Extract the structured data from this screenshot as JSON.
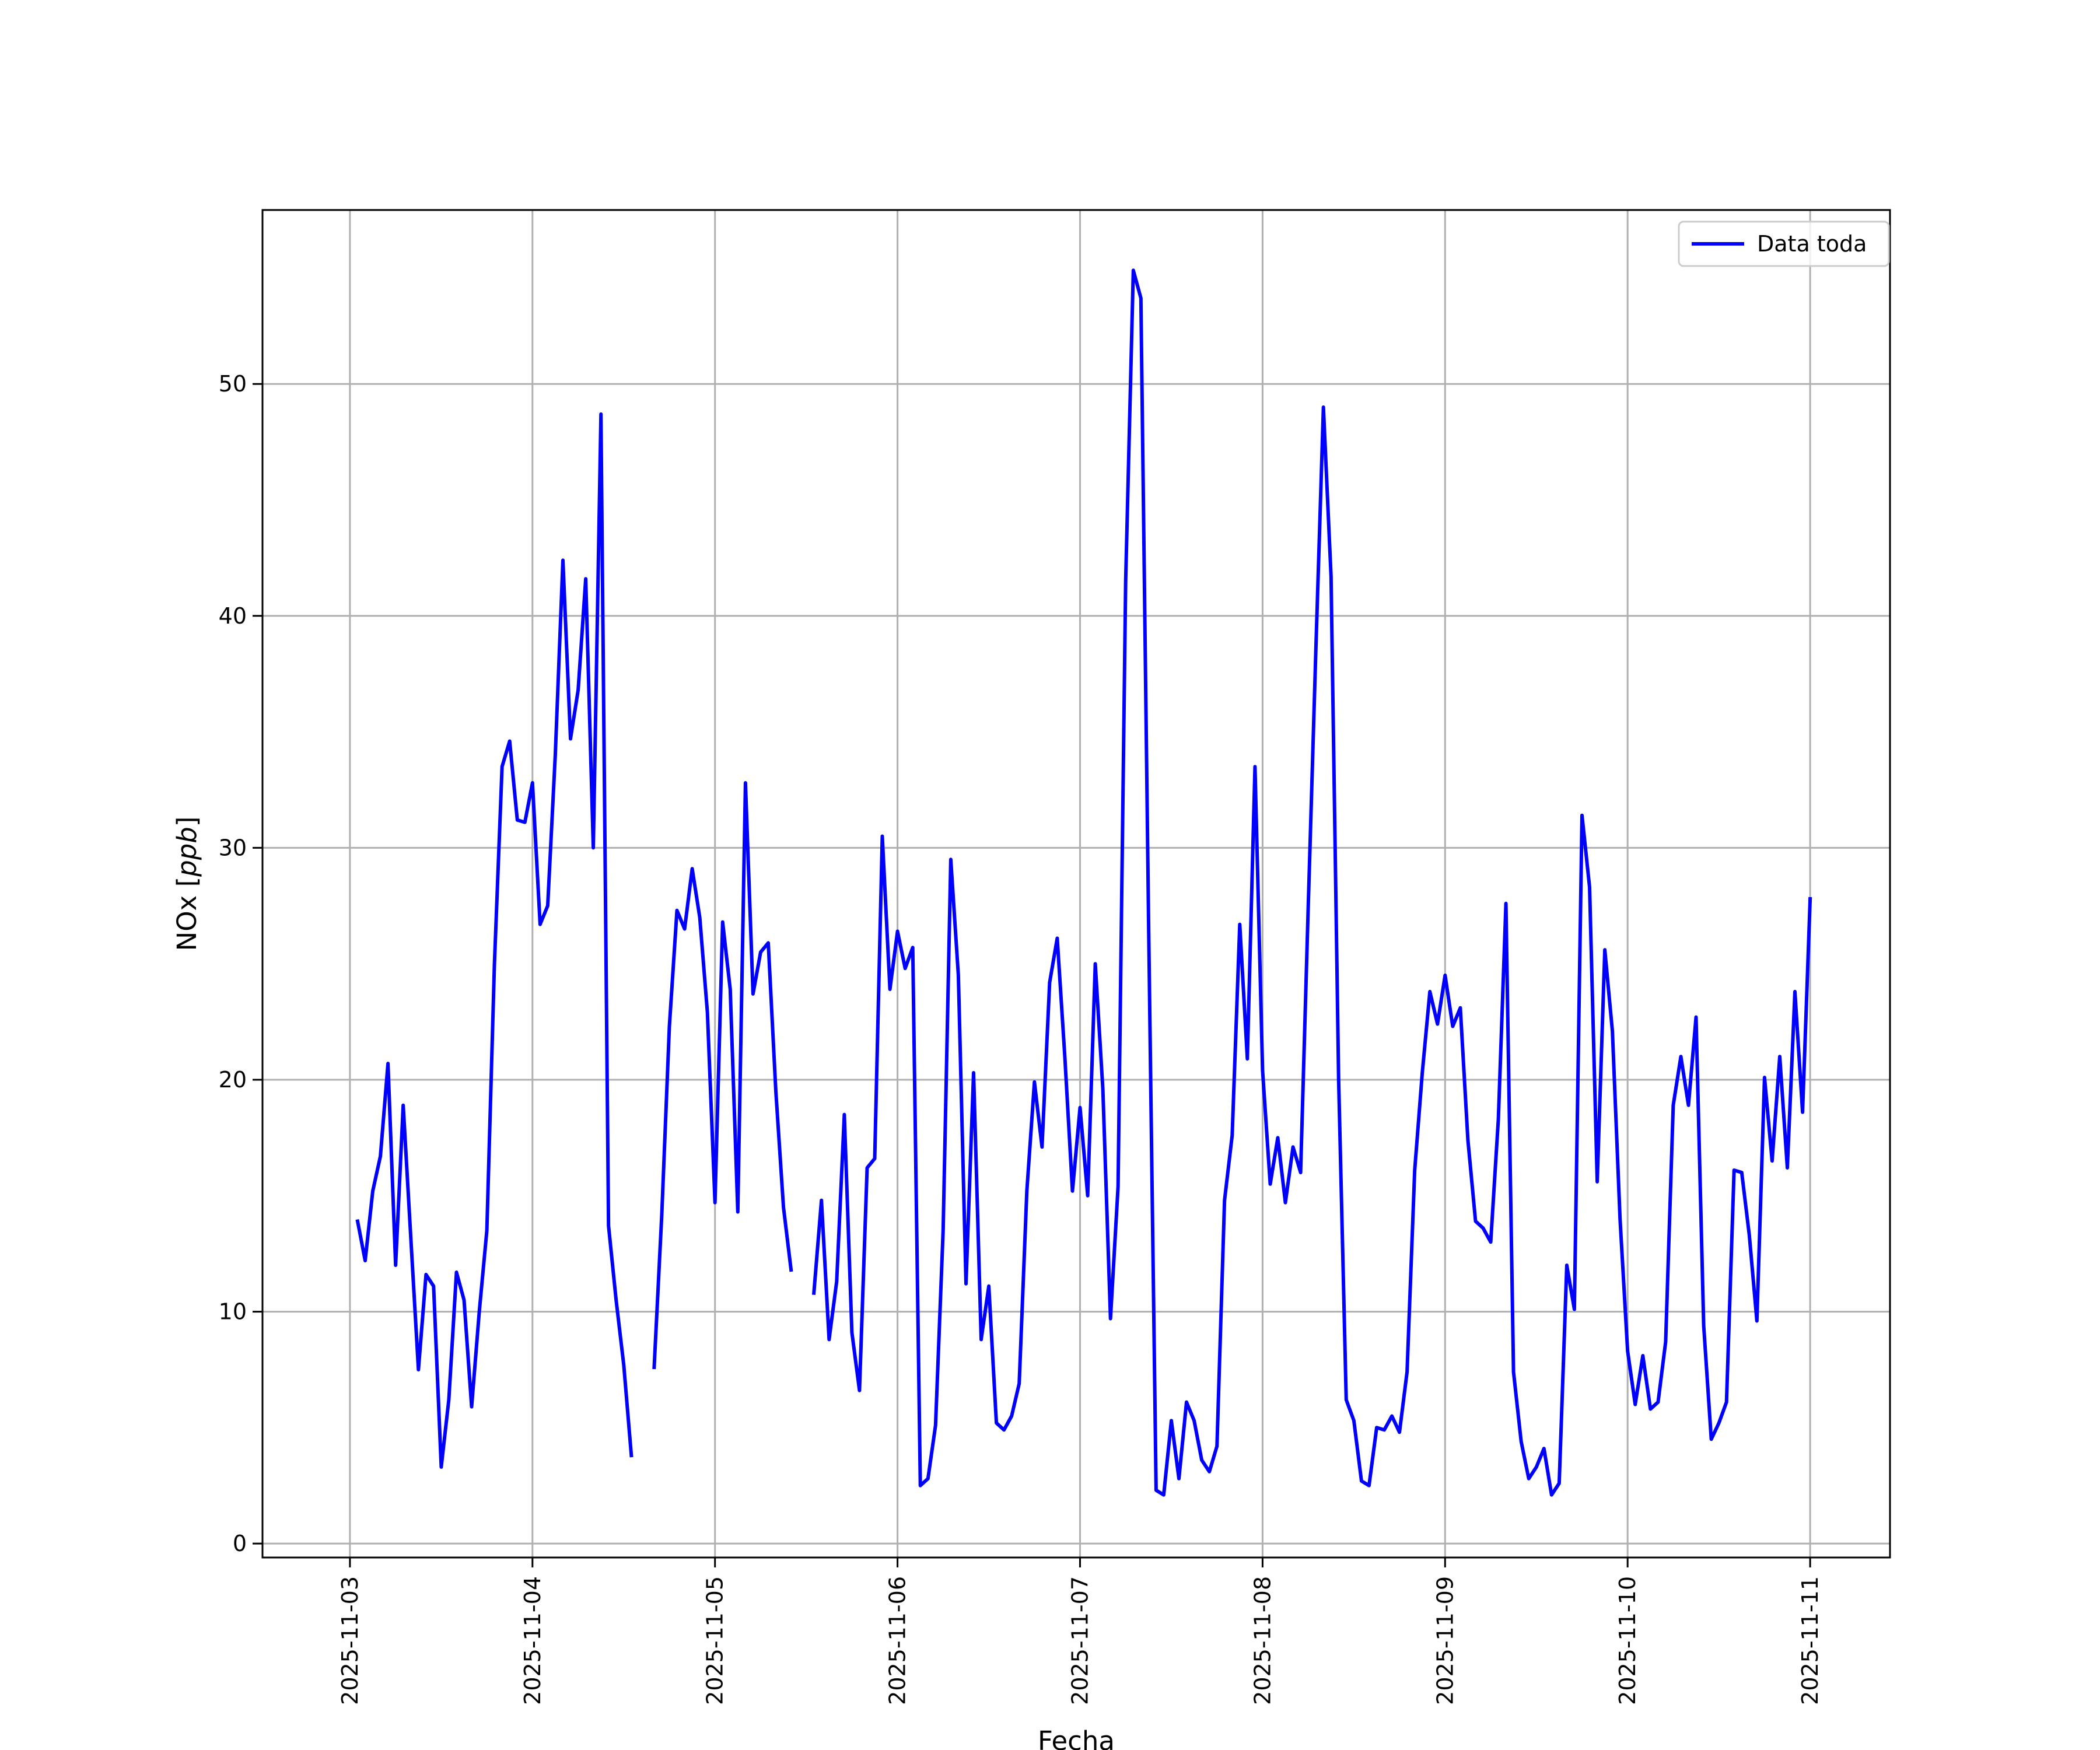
{
  "chart_data": {
    "type": "line",
    "xlabel": "Fecha",
    "ylabel": "NOx [ppb]",
    "ylabel_main": "NOx ",
    "ylabel_open": "[",
    "ylabel_unit": "ppb",
    "ylabel_close": "]",
    "grid": true,
    "legend_placement": "top-right",
    "xlim": [
      "2025-11-02 12:30",
      "2025-11-11 10:30"
    ],
    "ylim": [
      -0.6,
      57.5
    ],
    "x_ticks": [
      "2025-11-03",
      "2025-11-04",
      "2025-11-05",
      "2025-11-06",
      "2025-11-07",
      "2025-11-08",
      "2025-11-09",
      "2025-11-10",
      "2025-11-11"
    ],
    "y_ticks": [
      0,
      10,
      20,
      30,
      40,
      50
    ],
    "series": [
      {
        "name": "Data toda",
        "color": "#0000ff",
        "points": [
          [
            "2025-11-03 01:00",
            13.9
          ],
          [
            "2025-11-03 02:00",
            12.2
          ],
          [
            "2025-11-03 03:00",
            15.2
          ],
          [
            "2025-11-03 04:00",
            16.7
          ],
          [
            "2025-11-03 05:00",
            20.7
          ],
          [
            "2025-11-03 06:00",
            12.0
          ],
          [
            "2025-11-03 07:00",
            18.9
          ],
          [
            "2025-11-03 08:00",
            13.2
          ],
          [
            "2025-11-03 09:00",
            7.5
          ],
          [
            "2025-11-03 10:00",
            11.6
          ],
          [
            "2025-11-03 11:00",
            11.1
          ],
          [
            "2025-11-03 12:00",
            3.3
          ],
          [
            "2025-11-03 13:00",
            6.2
          ],
          [
            "2025-11-03 14:00",
            11.7
          ],
          [
            "2025-11-03 15:00",
            10.5
          ],
          [
            "2025-11-03 16:00",
            5.9
          ],
          [
            "2025-11-03 17:00",
            10.0
          ],
          [
            "2025-11-03 18:00",
            13.5
          ],
          [
            "2025-11-03 19:00",
            25.0
          ],
          [
            "2025-11-03 20:00",
            33.5
          ],
          [
            "2025-11-03 21:00",
            34.6
          ],
          [
            "2025-11-03 22:00",
            31.2
          ],
          [
            "2025-11-03 23:00",
            31.1
          ],
          [
            "2025-11-04 00:00",
            32.8
          ],
          [
            "2025-11-04 01:00",
            26.7
          ],
          [
            "2025-11-04 02:00",
            27.5
          ],
          [
            "2025-11-04 03:00",
            34.0
          ],
          [
            "2025-11-04 04:00",
            42.4
          ],
          [
            "2025-11-04 05:00",
            34.7
          ],
          [
            "2025-11-04 06:00",
            36.8
          ],
          [
            "2025-11-04 07:00",
            41.6
          ],
          [
            "2025-11-04 08:00",
            30.0
          ],
          [
            "2025-11-04 09:00",
            48.7
          ],
          [
            "2025-11-04 10:00",
            13.7
          ],
          [
            "2025-11-04 11:00",
            10.5
          ],
          [
            "2025-11-04 12:00",
            7.7
          ],
          [
            "2025-11-04 13:00",
            3.8
          ],
          null,
          [
            "2025-11-04 16:00",
            7.6
          ],
          [
            "2025-11-04 17:00",
            14.2
          ],
          [
            "2025-11-04 18:00",
            22.3
          ],
          [
            "2025-11-04 19:00",
            27.3
          ],
          [
            "2025-11-04 20:00",
            26.5
          ],
          [
            "2025-11-04 21:00",
            29.1
          ],
          [
            "2025-11-04 22:00",
            27.0
          ],
          [
            "2025-11-04 23:00",
            22.9
          ],
          [
            "2025-11-05 00:00",
            14.7
          ],
          [
            "2025-11-05 01:00",
            26.8
          ],
          [
            "2025-11-05 02:00",
            23.9
          ],
          [
            "2025-11-05 03:00",
            14.3
          ],
          [
            "2025-11-05 04:00",
            32.8
          ],
          [
            "2025-11-05 05:00",
            23.7
          ],
          [
            "2025-11-05 06:00",
            25.5
          ],
          [
            "2025-11-05 07:00",
            25.9
          ],
          [
            "2025-11-05 08:00",
            19.5
          ],
          [
            "2025-11-05 09:00",
            14.5
          ],
          [
            "2025-11-05 10:00",
            11.8
          ],
          null,
          [
            "2025-11-05 13:00",
            10.8
          ],
          [
            "2025-11-05 14:00",
            14.8
          ],
          [
            "2025-11-05 15:00",
            8.8
          ],
          [
            "2025-11-05 16:00",
            11.3
          ],
          [
            "2025-11-05 17:00",
            18.5
          ],
          [
            "2025-11-05 18:00",
            9.1
          ],
          [
            "2025-11-05 19:00",
            6.6
          ],
          [
            "2025-11-05 20:00",
            16.2
          ],
          [
            "2025-11-05 21:00",
            16.6
          ],
          [
            "2025-11-05 22:00",
            30.5
          ],
          [
            "2025-11-05 23:00",
            23.9
          ],
          [
            "2025-11-06 00:00",
            26.4
          ],
          [
            "2025-11-06 01:00",
            24.8
          ],
          [
            "2025-11-06 02:00",
            25.7
          ],
          [
            "2025-11-06 03:00",
            2.5
          ],
          [
            "2025-11-06 04:00",
            2.8
          ],
          [
            "2025-11-06 05:00",
            5.1
          ],
          [
            "2025-11-06 06:00",
            13.5
          ],
          [
            "2025-11-06 07:00",
            29.5
          ],
          [
            "2025-11-06 08:00",
            24.5
          ],
          [
            "2025-11-06 09:00",
            11.2
          ],
          [
            "2025-11-06 10:00",
            20.3
          ],
          [
            "2025-11-06 11:00",
            8.8
          ],
          [
            "2025-11-06 12:00",
            11.1
          ],
          [
            "2025-11-06 13:00",
            5.2
          ],
          [
            "2025-11-06 14:00",
            4.9
          ],
          [
            "2025-11-06 15:00",
            5.5
          ],
          [
            "2025-11-06 16:00",
            6.9
          ],
          [
            "2025-11-06 17:00",
            15.2
          ],
          [
            "2025-11-06 18:00",
            19.9
          ],
          [
            "2025-11-06 19:00",
            17.1
          ],
          [
            "2025-11-06 20:00",
            24.2
          ],
          [
            "2025-11-06 21:00",
            26.1
          ],
          [
            "2025-11-06 22:00",
            21.0
          ],
          [
            "2025-11-06 23:00",
            15.2
          ],
          [
            "2025-11-07 00:00",
            18.8
          ],
          [
            "2025-11-07 01:00",
            15.0
          ],
          [
            "2025-11-07 02:00",
            25.0
          ],
          [
            "2025-11-07 03:00",
            19.6
          ],
          [
            "2025-11-07 04:00",
            9.7
          ],
          [
            "2025-11-07 05:00",
            15.4
          ],
          [
            "2025-11-07 06:00",
            41.5
          ],
          [
            "2025-11-07 07:00",
            54.9
          ],
          [
            "2025-11-07 08:00",
            53.7
          ],
          [
            "2025-11-07 09:00",
            27.0
          ],
          [
            "2025-11-07 10:00",
            2.3
          ],
          [
            "2025-11-07 11:00",
            2.1
          ],
          [
            "2025-11-07 12:00",
            5.3
          ],
          [
            "2025-11-07 13:00",
            2.8
          ],
          [
            "2025-11-07 14:00",
            6.1
          ],
          [
            "2025-11-07 15:00",
            5.3
          ],
          [
            "2025-11-07 16:00",
            3.6
          ],
          [
            "2025-11-07 17:00",
            3.1
          ],
          [
            "2025-11-07 18:00",
            4.2
          ],
          [
            "2025-11-07 19:00",
            14.8
          ],
          [
            "2025-11-07 20:00",
            17.6
          ],
          [
            "2025-11-07 21:00",
            26.7
          ],
          [
            "2025-11-07 22:00",
            20.9
          ],
          [
            "2025-11-07 23:00",
            33.5
          ],
          [
            "2025-11-08 00:00",
            20.4
          ],
          [
            "2025-11-08 01:00",
            15.5
          ],
          [
            "2025-11-08 02:00",
            17.5
          ],
          [
            "2025-11-08 03:00",
            14.7
          ],
          [
            "2025-11-08 04:00",
            17.1
          ],
          [
            "2025-11-08 05:00",
            16.0
          ],
          [
            "2025-11-08 06:00",
            27.4
          ],
          [
            "2025-11-08 07:00",
            38.5
          ],
          [
            "2025-11-08 08:00",
            49.0
          ],
          [
            "2025-11-08 09:00",
            41.7
          ],
          [
            "2025-11-08 10:00",
            20.0
          ],
          [
            "2025-11-08 11:00",
            6.2
          ],
          [
            "2025-11-08 12:00",
            5.3
          ],
          [
            "2025-11-08 13:00",
            2.7
          ],
          [
            "2025-11-08 14:00",
            2.5
          ],
          [
            "2025-11-08 15:00",
            5.0
          ],
          [
            "2025-11-08 16:00",
            4.9
          ],
          [
            "2025-11-08 17:00",
            5.5
          ],
          [
            "2025-11-08 18:00",
            4.8
          ],
          [
            "2025-11-08 19:00",
            7.4
          ],
          [
            "2025-11-08 20:00",
            16.1
          ],
          [
            "2025-11-08 21:00",
            20.3
          ],
          [
            "2025-11-08 22:00",
            23.8
          ],
          [
            "2025-11-08 23:00",
            22.4
          ],
          [
            "2025-11-09 00:00",
            24.5
          ],
          [
            "2025-11-09 01:00",
            22.3
          ],
          [
            "2025-11-09 02:00",
            23.1
          ],
          [
            "2025-11-09 03:00",
            17.4
          ],
          [
            "2025-11-09 04:00",
            13.9
          ],
          [
            "2025-11-09 05:00",
            13.6
          ],
          [
            "2025-11-09 06:00",
            13.0
          ],
          [
            "2025-11-09 07:00",
            18.3
          ],
          [
            "2025-11-09 08:00",
            27.6
          ],
          [
            "2025-11-09 09:00",
            7.4
          ],
          [
            "2025-11-09 10:00",
            4.4
          ],
          [
            "2025-11-09 11:00",
            2.8
          ],
          [
            "2025-11-09 12:00",
            3.3
          ],
          [
            "2025-11-09 13:00",
            4.1
          ],
          [
            "2025-11-09 14:00",
            2.1
          ],
          [
            "2025-11-09 15:00",
            2.6
          ],
          [
            "2025-11-09 16:00",
            12.0
          ],
          [
            "2025-11-09 17:00",
            10.1
          ],
          [
            "2025-11-09 18:00",
            31.4
          ],
          [
            "2025-11-09 19:00",
            28.3
          ],
          [
            "2025-11-09 20:00",
            15.6
          ],
          [
            "2025-11-09 21:00",
            25.6
          ],
          [
            "2025-11-09 22:00",
            22.1
          ],
          [
            "2025-11-09 23:00",
            14.0
          ],
          [
            "2025-11-10 00:00",
            8.3
          ],
          [
            "2025-11-10 01:00",
            6.0
          ],
          [
            "2025-11-10 02:00",
            8.1
          ],
          [
            "2025-11-10 03:00",
            5.8
          ],
          [
            "2025-11-10 04:00",
            6.1
          ],
          [
            "2025-11-10 05:00",
            8.7
          ],
          [
            "2025-11-10 06:00",
            18.9
          ],
          [
            "2025-11-10 07:00",
            21.0
          ],
          [
            "2025-11-10 08:00",
            18.9
          ],
          [
            "2025-11-10 09:00",
            22.7
          ],
          [
            "2025-11-10 10:00",
            9.4
          ],
          [
            "2025-11-10 11:00",
            4.5
          ],
          [
            "2025-11-10 12:00",
            5.2
          ],
          [
            "2025-11-10 13:00",
            6.1
          ],
          [
            "2025-11-10 14:00",
            16.1
          ],
          [
            "2025-11-10 15:00",
            16.0
          ],
          [
            "2025-11-10 16:00",
            13.3
          ],
          [
            "2025-11-10 17:00",
            9.6
          ],
          [
            "2025-11-10 18:00",
            20.1
          ],
          [
            "2025-11-10 19:00",
            16.5
          ],
          [
            "2025-11-10 20:00",
            21.0
          ],
          [
            "2025-11-10 21:00",
            16.2
          ],
          [
            "2025-11-10 22:00",
            23.8
          ],
          [
            "2025-11-10 23:00",
            18.6
          ],
          [
            "2025-11-11 00:00",
            27.8
          ]
        ]
      }
    ]
  }
}
